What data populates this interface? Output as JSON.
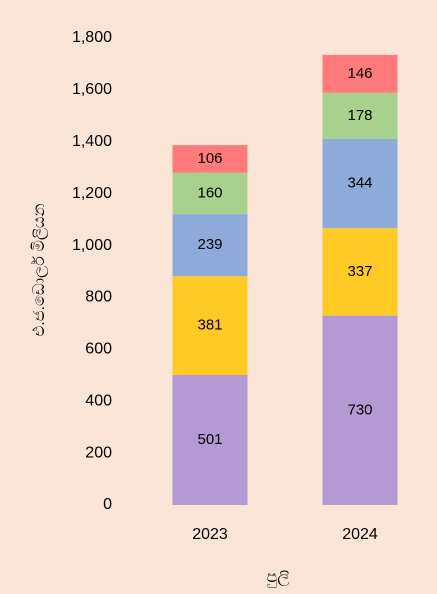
{
  "chart_data": {
    "type": "stacked_bar",
    "x_label": "පුලි",
    "y_label": "එ.ජ.ඩොලර් මිලියන",
    "categories": [
      "2023",
      "2024"
    ],
    "series": [
      {
        "color": "#b49ad2",
        "values": [
          501,
          730
        ]
      },
      {
        "color": "#ffc926",
        "values": [
          381,
          337
        ]
      },
      {
        "color": "#8eaadb",
        "values": [
          239,
          344
        ]
      },
      {
        "color": "#a8d18d",
        "values": [
          160,
          178
        ]
      },
      {
        "color": "#ff7b7b",
        "values": [
          106,
          146
        ]
      }
    ],
    "ylim": [
      0,
      1800
    ],
    "yticks": [
      0,
      200,
      400,
      600,
      800,
      {
        "value": 1000,
        "label": "1,000"
      },
      {
        "value": 1200,
        "label": "1,200"
      },
      {
        "value": 1400,
        "label": "1,400"
      },
      {
        "value": 1600,
        "label": "1,600"
      },
      {
        "value": 1800,
        "label": "1,800"
      }
    ],
    "grid": false
  }
}
